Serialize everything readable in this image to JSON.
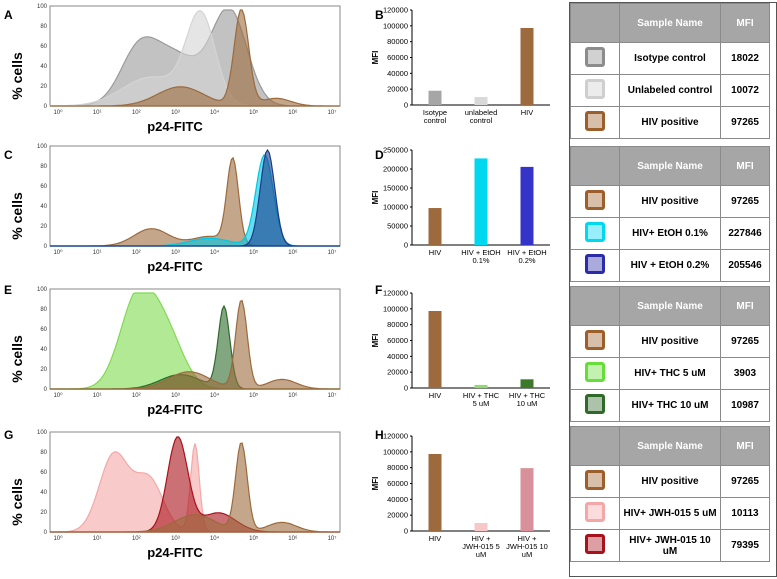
{
  "panels": [
    {
      "letter_hist": "A",
      "letter_bar": "B",
      "hist_ylabel": "% cells",
      "hist_xlabel": "p24-FITC",
      "bar_ylabel": "MFI",
      "table_header": [
        "",
        "Sample Name",
        "MFI"
      ],
      "table_rows": [
        {
          "name": "Isotype control",
          "mfi": "18022",
          "color": "#8c8c8c"
        },
        {
          "name": "Unlabeled control",
          "mfi": "10072",
          "color": "#cfcfcf"
        },
        {
          "name": "HIV positive",
          "mfi": "97265",
          "color": "#9c5e2b"
        }
      ]
    },
    {
      "letter_hist": "C",
      "letter_bar": "D",
      "hist_ylabel": "% cells",
      "hist_xlabel": "p24-FITC",
      "bar_ylabel": "MFI",
      "table_header": [
        "",
        "Sample Name",
        "MFI"
      ],
      "table_rows": [
        {
          "name": "HIV positive",
          "mfi": "97265",
          "color": "#9c5e2b"
        },
        {
          "name": "HIV+ EtOH 0.1%",
          "mfi": "227846",
          "color": "#00d8f0"
        },
        {
          "name": "HIV + EtOH 0.2%",
          "mfi": "205546",
          "color": "#2b2ca8"
        }
      ]
    },
    {
      "letter_hist": "E",
      "letter_bar": "F",
      "hist_ylabel": "% cells",
      "hist_xlabel": "p24-FITC",
      "bar_ylabel": "MFI",
      "table_header": [
        "",
        "Sample Name",
        "MFI"
      ],
      "table_rows": [
        {
          "name": "HIV positive",
          "mfi": "97265",
          "color": "#9c5e2b"
        },
        {
          "name": "HIV+ THC 5 uM",
          "mfi": "3903",
          "color": "#66dd3a"
        },
        {
          "name": "HIV+ THC 10 uM",
          "mfi": "10987",
          "color": "#2f6a2a"
        }
      ]
    },
    {
      "letter_hist": "G",
      "letter_bar": "H",
      "hist_ylabel": "% cells",
      "hist_xlabel": "p24-FITC",
      "bar_ylabel": "MFI",
      "table_header": [
        "",
        "Sample Name",
        "MFI"
      ],
      "table_rows": [
        {
          "name": "HIV positive",
          "mfi": "97265",
          "color": "#9c5e2b"
        },
        {
          "name": "HIV+ JWH-015 5 uM",
          "mfi": "10113",
          "color": "#f4a7a7"
        },
        {
          "name": "HIV+ JWH-015 10 uM",
          "mfi": "79395",
          "color": "#a8121b"
        }
      ]
    }
  ],
  "chart_data": [
    {
      "type": "bar",
      "panel": "B",
      "categories": [
        "Isotype control",
        "unlabeled control",
        "HIV"
      ],
      "values": [
        18022,
        10072,
        97265
      ],
      "colors": [
        "#a6a6a6",
        "#d9d9d9",
        "#9c6a3c"
      ],
      "ylabel": "MFI",
      "ylim": [
        0,
        120000
      ],
      "yticks": [
        "0",
        "20000",
        "40000",
        "60000",
        "80000",
        "100000",
        "120000"
      ]
    },
    {
      "type": "bar",
      "panel": "D",
      "categories": [
        "HIV",
        "HIV + EtOH 0.1%",
        "HIV + EtOH 0.2%"
      ],
      "values": [
        97265,
        227846,
        205546
      ],
      "colors": [
        "#9c6a3c",
        "#00d8f0",
        "#3434c8"
      ],
      "ylabel": "MFI",
      "ylim": [
        0,
        250000
      ],
      "yticks": [
        "0",
        "50000",
        "100000",
        "150000",
        "200000",
        "250000"
      ]
    },
    {
      "type": "bar",
      "panel": "F",
      "categories": [
        "HIV",
        "HIV + THC 5 uM",
        "HIV + THC 10 uM"
      ],
      "values": [
        97265,
        3903,
        10987
      ],
      "colors": [
        "#9c6a3c",
        "#8fdc6a",
        "#3b7a2c"
      ],
      "ylabel": "MFI",
      "ylim": [
        0,
        120000
      ],
      "yticks": [
        "0",
        "20000",
        "40000",
        "60000",
        "80000",
        "100000",
        "120000"
      ]
    },
    {
      "type": "bar",
      "panel": "H",
      "categories": [
        "HIV",
        "HIV + JWH-015 5 uM",
        "HIV + JWH-015 10 uM"
      ],
      "values": [
        97265,
        10113,
        79395
      ],
      "colors": [
        "#9c6a3c",
        "#f8c8c8",
        "#d8909a"
      ],
      "ylabel": "MFI",
      "ylim": [
        0,
        120000
      ],
      "yticks": [
        "0",
        "20000",
        "40000",
        "60000",
        "80000",
        "100000",
        "120000"
      ]
    },
    {
      "type": "area",
      "panel": "A",
      "xlabel": "p24-FITC",
      "ylabel": "% cells",
      "series": [
        {
          "color": "#9a9a9a",
          "peaks": [
            [
              0.42,
              0.55,
              0.1
            ],
            [
              0.3,
              0.4,
              0.06
            ],
            [
              0.62,
              0.95,
              0.06
            ]
          ]
        },
        {
          "color": "#d4d4d4",
          "peaks": [
            [
              0.52,
              0.92,
              0.05
            ],
            [
              0.35,
              0.3,
              0.1
            ]
          ]
        },
        {
          "color": "#9c6a3c",
          "peaks": [
            [
              0.66,
              1.0,
              0.025
            ],
            [
              0.45,
              0.2,
              0.08
            ],
            [
              0.78,
              0.08,
              0.05
            ]
          ]
        }
      ]
    },
    {
      "type": "area",
      "panel": "C",
      "xlabel": "p24-FITC",
      "ylabel": "% cells",
      "series": [
        {
          "color": "#9c6a3c",
          "peaks": [
            [
              0.63,
              0.88,
              0.02
            ],
            [
              0.35,
              0.18,
              0.06
            ],
            [
              0.55,
              0.1,
              0.06
            ]
          ]
        },
        {
          "color": "#00c8e6",
          "peaks": [
            [
              0.74,
              0.95,
              0.03
            ],
            [
              0.55,
              0.08,
              0.07
            ]
          ]
        },
        {
          "color": "#1a3a8a",
          "peaks": [
            [
              0.75,
              1.0,
              0.025
            ]
          ]
        }
      ]
    },
    {
      "type": "area",
      "panel": "E",
      "xlabel": "p24-FITC",
      "ylabel": "% cells",
      "series": [
        {
          "color": "#7edb4f",
          "peaks": [
            [
              0.3,
              0.92,
              0.06
            ],
            [
              0.4,
              0.55,
              0.06
            ]
          ]
        },
        {
          "color": "#2f6a2a",
          "peaks": [
            [
              0.6,
              0.85,
              0.02
            ],
            [
              0.45,
              0.15,
              0.07
            ]
          ]
        },
        {
          "color": "#9c6a3c",
          "peaks": [
            [
              0.66,
              0.92,
              0.02
            ],
            [
              0.48,
              0.18,
              0.07
            ],
            [
              0.8,
              0.1,
              0.05
            ]
          ]
        }
      ]
    },
    {
      "type": "area",
      "panel": "G",
      "xlabel": "p24-FITC",
      "ylabel": "% cells",
      "series": [
        {
          "color": "#f4a7a7",
          "peaks": [
            [
              0.22,
              0.8,
              0.05
            ],
            [
              0.34,
              0.55,
              0.05
            ],
            [
              0.5,
              0.92,
              0.015
            ]
          ]
        },
        {
          "color": "#a8121b",
          "peaks": [
            [
              0.44,
              0.98,
              0.035
            ],
            [
              0.58,
              0.2,
              0.06
            ]
          ]
        },
        {
          "color": "#9c6a3c",
          "peaks": [
            [
              0.66,
              0.92,
              0.02
            ],
            [
              0.5,
              0.18,
              0.07
            ],
            [
              0.8,
              0.1,
              0.05
            ]
          ]
        }
      ]
    }
  ]
}
